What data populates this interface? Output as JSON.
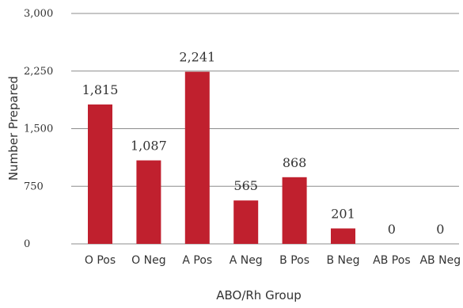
{
  "chart_data": {
    "type": "bar",
    "categories": [
      "O Pos",
      "O Neg",
      "A Pos",
      "A Neg",
      "B Pos",
      "B Neg",
      "AB Pos",
      "AB Neg"
    ],
    "values": [
      1815,
      1087,
      2241,
      565,
      868,
      201,
      0,
      0
    ],
    "data_labels": [
      "1,815",
      "1,087",
      "2,241",
      "565",
      "868",
      "201",
      "0",
      "0"
    ],
    "xlabel": "ABO/Rh Group",
    "ylabel": "Number Prepared",
    "ylim": [
      0,
      3000
    ],
    "yticks": [
      0,
      750,
      1500,
      2250,
      3000
    ],
    "ytick_labels": [
      "0",
      "750",
      "1,500",
      "2,250",
      "3,000"
    ],
    "grid": true,
    "bar_color": "#c0202e"
  }
}
